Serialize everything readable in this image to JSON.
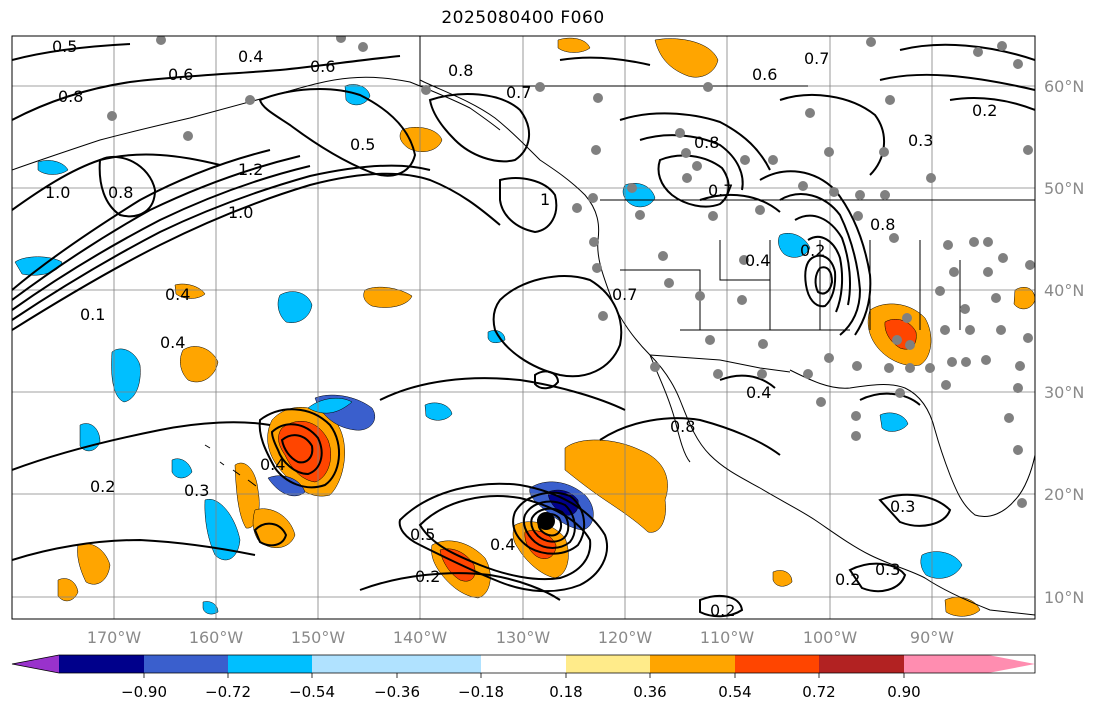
{
  "title": "2025080400 F060",
  "map": {
    "longitude_labels": [
      "170°W",
      "160°W",
      "150°W",
      "140°W",
      "130°W",
      "120°W",
      "110°W",
      "100°W",
      "90°W"
    ],
    "latitude_labels": [
      "60°N",
      "50°N",
      "40°N",
      "30°N",
      "20°N",
      "10°N"
    ],
    "contour_labels": [
      "0.5",
      "0.4",
      "0.6",
      "0.8",
      "0.6",
      "1.0",
      "0.8",
      "1.2",
      "1.0",
      "0.5",
      "0.8",
      "0.7",
      "1",
      "0.6",
      "0.7",
      "0.8",
      "0.7",
      "0.3",
      "0.2",
      "0.4",
      "0.2",
      "0.8",
      "0.4",
      "0.4",
      "0.1",
      "0.7",
      "0.4",
      "0.2",
      "0.3",
      "0.5",
      "0.4",
      "0.2",
      "0.3",
      "0.2",
      "0.3",
      "0.8",
      "0.4",
      "0.2"
    ],
    "colors": {
      "contour": "#000000",
      "grid": "#808080",
      "coast": "#000000",
      "station_dot": "#808080",
      "storm_center": "#000000"
    }
  },
  "colorbar": {
    "tick_labels": [
      "−0.90",
      "−0.72",
      "−0.54",
      "−0.36",
      "−0.18",
      "0.18",
      "0.36",
      "0.54",
      "0.72",
      "0.90"
    ],
    "colors": [
      "#9932cc",
      "#00008b",
      "#3a5fcd",
      "#00bfff",
      "#b0e2ff",
      "#ffffff",
      "#ffeb8a",
      "#ffa500",
      "#ff4500",
      "#b22222",
      "#ff8db0"
    ]
  }
}
